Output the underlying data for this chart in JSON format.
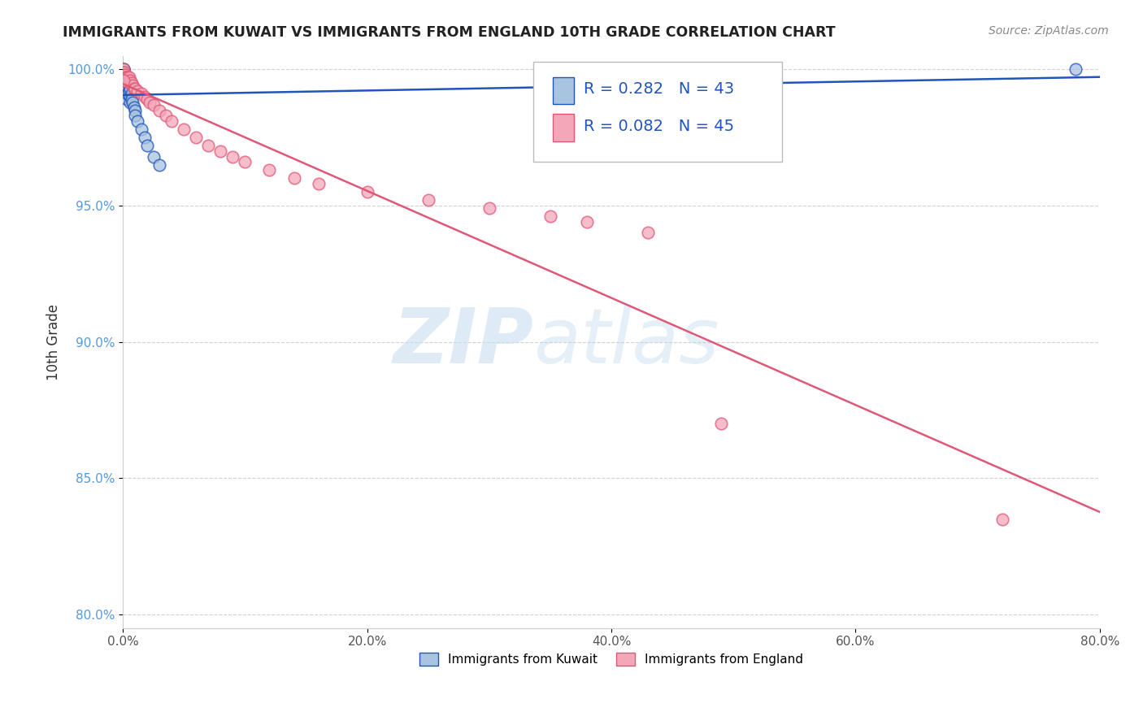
{
  "title": "IMMIGRANTS FROM KUWAIT VS IMMIGRANTS FROM ENGLAND 10TH GRADE CORRELATION CHART",
  "source": "Source: ZipAtlas.com",
  "ylabel": "10th Grade",
  "xlim": [
    0.0,
    0.8
  ],
  "ylim": [
    0.795,
    1.005
  ],
  "xtick_labels": [
    "0.0%",
    "20.0%",
    "40.0%",
    "60.0%",
    "80.0%"
  ],
  "xtick_vals": [
    0.0,
    0.2,
    0.4,
    0.6,
    0.8
  ],
  "ytick_labels": [
    "80.0%",
    "85.0%",
    "90.0%",
    "95.0%",
    "100.0%"
  ],
  "ytick_vals": [
    0.8,
    0.85,
    0.9,
    0.95,
    1.0
  ],
  "legend_label1": "Immigrants from Kuwait",
  "legend_label2": "Immigrants from England",
  "R1": 0.282,
  "N1": 43,
  "R2": 0.082,
  "N2": 45,
  "color_kuwait": "#a8c4e0",
  "color_england": "#f4a7b9",
  "line_color_kuwait": "#2255bb",
  "line_color_england": "#e05878",
  "watermark_zip": "ZIP",
  "watermark_atlas": "atlas",
  "kuwait_x": [
    0.0005,
    0.0005,
    0.0008,
    0.001,
    0.001,
    0.001,
    0.001,
    0.001,
    0.001,
    0.0015,
    0.0015,
    0.002,
    0.002,
    0.002,
    0.002,
    0.002,
    0.003,
    0.003,
    0.003,
    0.003,
    0.003,
    0.004,
    0.004,
    0.004,
    0.005,
    0.005,
    0.006,
    0.006,
    0.006,
    0.007,
    0.007,
    0.008,
    0.009,
    0.01,
    0.01,
    0.012,
    0.015,
    0.018,
    0.02,
    0.025,
    0.03,
    0.78,
    0.0003
  ],
  "kuwait_y": [
    1.0,
    0.999,
    1.0,
    0.999,
    0.998,
    0.997,
    0.996,
    0.995,
    0.993,
    0.998,
    0.996,
    0.997,
    0.996,
    0.994,
    0.993,
    0.991,
    0.996,
    0.995,
    0.993,
    0.991,
    0.989,
    0.995,
    0.993,
    0.991,
    0.994,
    0.992,
    0.993,
    0.99,
    0.988,
    0.991,
    0.989,
    0.988,
    0.986,
    0.985,
    0.983,
    0.981,
    0.978,
    0.975,
    0.972,
    0.968,
    0.965,
    1.0,
    1.0
  ],
  "england_x": [
    0.0005,
    0.0008,
    0.001,
    0.001,
    0.001,
    0.002,
    0.002,
    0.003,
    0.003,
    0.004,
    0.004,
    0.005,
    0.005,
    0.006,
    0.007,
    0.008,
    0.009,
    0.01,
    0.012,
    0.015,
    0.018,
    0.02,
    0.022,
    0.025,
    0.03,
    0.035,
    0.04,
    0.05,
    0.06,
    0.07,
    0.08,
    0.09,
    0.1,
    0.12,
    0.14,
    0.16,
    0.2,
    0.25,
    0.3,
    0.35,
    0.38,
    0.43,
    0.49,
    0.72,
    0.0003
  ],
  "england_y": [
    1.0,
    0.999,
    0.999,
    0.998,
    0.997,
    0.998,
    0.997,
    0.997,
    0.996,
    0.997,
    0.996,
    0.997,
    0.995,
    0.996,
    0.995,
    0.994,
    0.993,
    0.993,
    0.992,
    0.991,
    0.99,
    0.989,
    0.988,
    0.987,
    0.985,
    0.983,
    0.981,
    0.978,
    0.975,
    0.972,
    0.97,
    0.968,
    0.966,
    0.963,
    0.96,
    0.958,
    0.955,
    0.952,
    0.949,
    0.946,
    0.944,
    0.94,
    0.87,
    0.835,
    0.996
  ]
}
